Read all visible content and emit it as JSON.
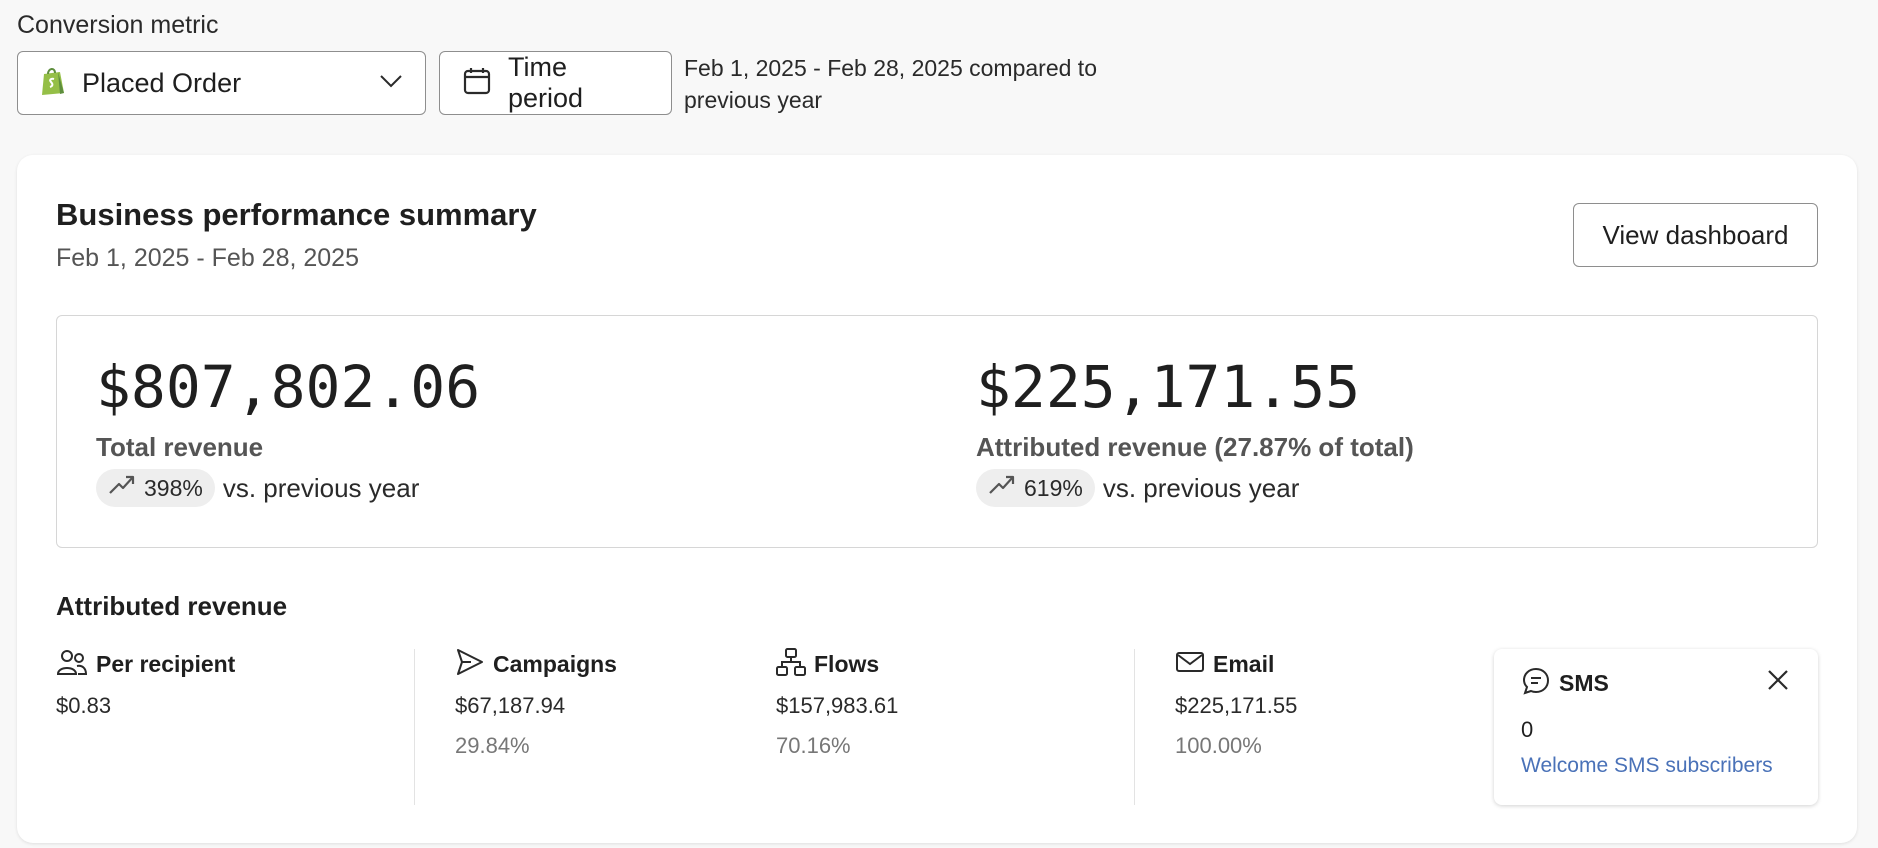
{
  "conversion_metric": {
    "label": "Conversion metric",
    "selected": "Placed Order",
    "icon": "shopify-bag-icon",
    "brand_color": "#95bf47"
  },
  "time_period": {
    "button_label": "Time period",
    "description": "Feb 1, 2025 - Feb 28, 2025 compared to previous year"
  },
  "summary": {
    "title": "Business performance summary",
    "date_range": "Feb 1, 2025 - Feb 28, 2025",
    "view_dashboard_label": "View dashboard",
    "kpis": [
      {
        "value": "$807,802.06",
        "label": "Total revenue",
        "change": "398%",
        "comparison": "vs. previous year",
        "trend": "up"
      },
      {
        "value": "$225,171.55",
        "label": "Attributed revenue (27.87% of total)",
        "change": "619%",
        "comparison": "vs. previous year",
        "trend": "up"
      }
    ]
  },
  "attributed": {
    "title": "Attributed revenue",
    "stats": [
      {
        "label": "Per recipient",
        "icon": "users-icon",
        "value": "$0.83",
        "percent": ""
      },
      {
        "label": "Campaigns",
        "icon": "send-icon",
        "value": "$67,187.94",
        "percent": "29.84%"
      },
      {
        "label": "Flows",
        "icon": "flow-icon",
        "value": "$157,983.61",
        "percent": "70.16%"
      },
      {
        "label": "Email",
        "icon": "mail-icon",
        "value": "$225,171.55",
        "percent": "100.00%"
      }
    ],
    "sms": {
      "label": "SMS",
      "icon": "chat-icon",
      "value": "0",
      "link": "Welcome SMS subscribers",
      "link_color": "#4a72b8"
    }
  }
}
